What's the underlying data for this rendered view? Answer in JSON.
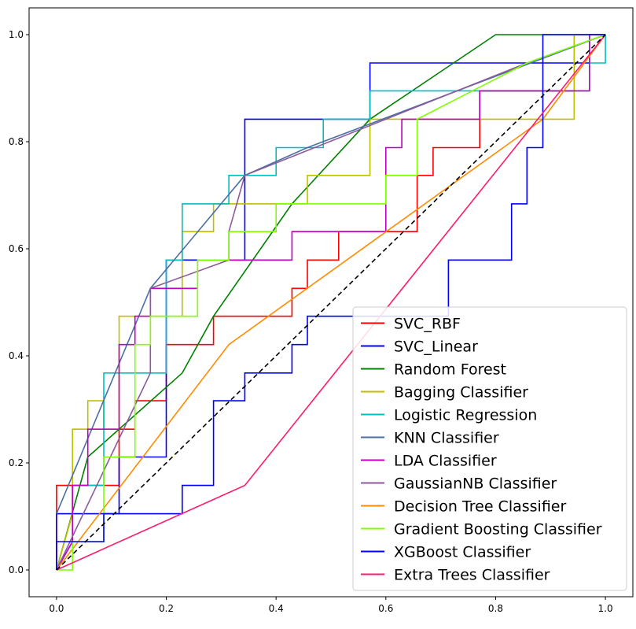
{
  "chart_data": {
    "type": "line",
    "title": "",
    "xlabel": "",
    "ylabel": "",
    "xlim": [
      -0.05,
      1.05
    ],
    "ylim": [
      -0.05,
      1.05
    ],
    "grid": false,
    "legend_position": "lower-right",
    "x_ticks": [
      "0.0",
      "0.2",
      "0.4",
      "0.6",
      "0.8",
      "1.0"
    ],
    "y_ticks": [
      "0.0",
      "0.2",
      "0.4",
      "0.6",
      "0.8",
      "1.0"
    ],
    "diagonal": {
      "style": "dashed",
      "color": "#000000",
      "x": [
        0,
        1
      ],
      "y": [
        0,
        1
      ]
    },
    "series": [
      {
        "name": "SVC_RBF",
        "color": "#ff0000",
        "x": [
          0,
          0,
          0,
          0.114,
          0.114,
          0.143,
          0.143,
          0.2,
          0.2,
          0.286,
          0.286,
          0.429,
          0.429,
          0.457,
          0.457,
          0.514,
          0.514,
          0.657,
          0.657,
          0.686,
          0.686,
          0.771,
          0.771,
          0.943,
          0.943,
          1.0
        ],
        "y": [
          0,
          0.053,
          0.158,
          0.158,
          0.263,
          0.263,
          0.316,
          0.316,
          0.421,
          0.421,
          0.474,
          0.474,
          0.526,
          0.526,
          0.579,
          0.579,
          0.632,
          0.632,
          0.737,
          0.737,
          0.789,
          0.789,
          0.895,
          0.895,
          1.0,
          1.0
        ]
      },
      {
        "name": "SVC_Linear",
        "color": "#0000ff",
        "x": [
          0,
          0,
          0.114,
          0.114,
          0.2,
          0.2,
          0.343,
          0.343,
          0.571,
          0.571,
          0.971,
          0.971,
          1.0
        ],
        "y": [
          0,
          0.105,
          0.105,
          0.211,
          0.211,
          0.579,
          0.579,
          0.842,
          0.842,
          0.947,
          0.947,
          1.0,
          1.0
        ]
      },
      {
        "name": "Random Forest",
        "color": "#008000",
        "x": [
          0,
          0.057,
          0.229,
          0.286,
          0.429,
          0.571,
          0.8,
          1.0
        ],
        "y": [
          0,
          0.211,
          0.368,
          0.474,
          0.684,
          0.842,
          1.0,
          1.0
        ]
      },
      {
        "name": "Bagging Classifier",
        "color": "#bfbf00",
        "x": [
          0,
          0.029,
          0.029,
          0.057,
          0.057,
          0.086,
          0.086,
          0.114,
          0.114,
          0.229,
          0.229,
          0.286,
          0.286,
          0.457,
          0.457,
          0.571,
          0.571,
          0.943,
          0.943,
          1.0
        ],
        "y": [
          0,
          0.105,
          0.263,
          0.263,
          0.316,
          0.316,
          0.263,
          0.263,
          0.474,
          0.474,
          0.632,
          0.632,
          0.684,
          0.684,
          0.737,
          0.737,
          0.842,
          0.842,
          1.0,
          1.0
        ]
      },
      {
        "name": "Logistic Regression",
        "color": "#00bfbf",
        "x": [
          0,
          0.029,
          0.029,
          0.086,
          0.086,
          0.2,
          0.2,
          0.229,
          0.229,
          0.314,
          0.314,
          0.4,
          0.4,
          0.486,
          0.486,
          0.571,
          0.571,
          0.971,
          0.971,
          1.0,
          1.0
        ],
        "y": [
          0,
          0.053,
          0.158,
          0.158,
          0.368,
          0.368,
          0.579,
          0.579,
          0.684,
          0.684,
          0.737,
          0.737,
          0.789,
          0.789,
          0.842,
          0.842,
          0.895,
          0.895,
          0.947,
          0.947,
          1.0
        ]
      },
      {
        "name": "KNN Classifier",
        "color": "#4a6fa5",
        "x": [
          0,
          0.171,
          0.343,
          0.457,
          1.0
        ],
        "y": [
          0.105,
          0.526,
          0.737,
          0.789,
          1.0
        ]
      },
      {
        "name": "LDA Classifier",
        "color": "#bf00bf",
        "x": [
          0,
          0.029,
          0.029,
          0.057,
          0.057,
          0.114,
          0.114,
          0.143,
          0.143,
          0.171,
          0.171,
          0.257,
          0.257,
          0.429,
          0.429,
          0.6,
          0.6,
          0.629,
          0.629,
          0.771,
          0.771,
          0.971,
          0.971,
          1.0
        ],
        "y": [
          0,
          0.053,
          0.158,
          0.158,
          0.263,
          0.263,
          0.421,
          0.421,
          0.474,
          0.474,
          0.526,
          0.526,
          0.579,
          0.579,
          0.632,
          0.632,
          0.789,
          0.789,
          0.842,
          0.842,
          0.895,
          0.895,
          1.0,
          1.0
        ]
      },
      {
        "name": "GaussianNB Classifier",
        "color": "#8c5a9b",
        "x": [
          0,
          0.171,
          0.171,
          0.314,
          0.314,
          0.343,
          0.857,
          1.0
        ],
        "y": [
          0,
          0.368,
          0.526,
          0.579,
          0.632,
          0.737,
          0.947,
          1.0
        ]
      },
      {
        "name": "Decision Tree Classifier",
        "color": "#ff8c00",
        "x": [
          0,
          0.314,
          0.886,
          1.0
        ],
        "y": [
          0,
          0.421,
          0.842,
          1.0
        ]
      },
      {
        "name": "Gradient Boosting Classifier",
        "color": "#7fff00",
        "x": [
          0,
          0.029,
          0.029,
          0.086,
          0.086,
          0.143,
          0.143,
          0.171,
          0.171,
          0.257,
          0.257,
          0.314,
          0.314,
          0.4,
          0.4,
          0.6,
          0.6,
          0.657,
          0.657,
          0.857,
          1.0
        ],
        "y": [
          0,
          0,
          0.053,
          0.053,
          0.211,
          0.211,
          0.421,
          0.421,
          0.474,
          0.474,
          0.579,
          0.579,
          0.632,
          0.632,
          0.684,
          0.684,
          0.737,
          0.737,
          0.842,
          0.947,
          1.0
        ]
      },
      {
        "name": "XGBoost Classifier",
        "color": "#0000ff",
        "x": [
          0,
          0,
          0.086,
          0.086,
          0.229,
          0.229,
          0.286,
          0.286,
          0.343,
          0.343,
          0.429,
          0.429,
          0.457,
          0.457,
          0.714,
          0.714,
          0.829,
          0.829,
          0.857,
          0.857,
          0.886,
          0.886,
          1.0
        ],
        "y": [
          0,
          0.053,
          0.053,
          0.105,
          0.105,
          0.158,
          0.158,
          0.316,
          0.316,
          0.368,
          0.368,
          0.421,
          0.421,
          0.474,
          0.474,
          0.579,
          0.579,
          0.684,
          0.684,
          0.789,
          0.789,
          1.0,
          1.0
        ]
      },
      {
        "name": "Extra Trees Classifier",
        "color": "#ff1a6e",
        "x": [
          0,
          0.343,
          1.0
        ],
        "y": [
          0,
          0.158,
          1.0
        ]
      }
    ]
  }
}
